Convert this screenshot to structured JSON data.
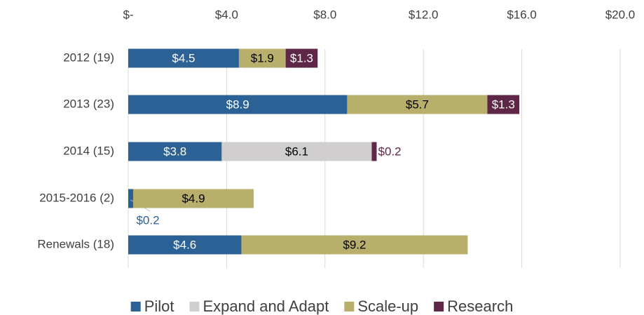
{
  "chart_data": {
    "type": "bar",
    "orientation": "horizontal",
    "stacked": true,
    "categories": [
      "2012 (19)",
      "2013 (23)",
      "2014 (15)",
      "2015-2016 (2)",
      "Renewals (18)"
    ],
    "series": [
      {
        "name": "Pilot",
        "color": "#2c6195",
        "values": [
          4.5,
          8.9,
          3.8,
          0.2,
          4.6
        ],
        "value_labels": [
          "$4.5",
          "$8.9",
          "$3.8",
          "$0.2",
          "$4.6"
        ]
      },
      {
        "name": "Expand and Adapt",
        "color": "#d0cece",
        "values": [
          null,
          null,
          6.1,
          null,
          null
        ],
        "value_labels": [
          null,
          null,
          "$6.1",
          null,
          null
        ]
      },
      {
        "name": "Scale-up",
        "color": "#b8af6c",
        "values": [
          1.9,
          5.7,
          null,
          4.9,
          9.2
        ],
        "value_labels": [
          "$1.9",
          "$5.7",
          null,
          "$4.9",
          "$9.2"
        ]
      },
      {
        "name": "Research",
        "color": "#5e2747",
        "values": [
          1.3,
          1.3,
          0.2,
          null,
          null
        ],
        "value_labels": [
          "$1.3",
          "$1.3",
          "$0.2",
          null,
          null
        ]
      }
    ],
    "xlim": [
      0,
      20
    ],
    "xticks": [
      {
        "value": 0,
        "label": "$-"
      },
      {
        "value": 4,
        "label": "$4.0"
      },
      {
        "value": 8,
        "label": "$8.0"
      },
      {
        "value": 12,
        "label": "$12.0"
      },
      {
        "value": 16,
        "label": "$16.0"
      },
      {
        "value": 20,
        "label": "$20.0"
      }
    ],
    "grid": true,
    "legend": "bottom"
  }
}
